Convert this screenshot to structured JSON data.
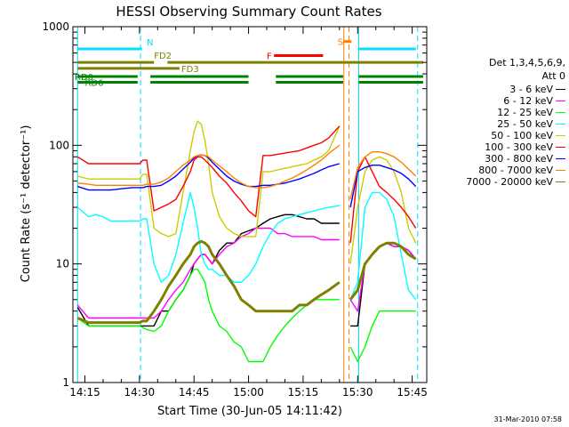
{
  "chart_data": {
    "type": "line",
    "title": "HESSI Observing Summary Count Rates",
    "xlabel": "Start Time (30-Jun-05 14:11:42)",
    "ylabel": "Count Rate (s⁻¹ detector⁻¹)",
    "yscale": "log",
    "ylim": [
      1,
      1000
    ],
    "xlim_minutes": [
      11.7,
      109.0
    ],
    "xticks": [
      {
        "t": 15,
        "label": "14:15"
      },
      {
        "t": 30,
        "label": "14:30"
      },
      {
        "t": 45,
        "label": "14:45"
      },
      {
        "t": 60,
        "label": "15:00"
      },
      {
        "t": 75,
        "label": "15:15"
      },
      {
        "t": 90,
        "label": "15:30"
      },
      {
        "t": 105,
        "label": "15:45"
      }
    ],
    "yticks": [
      {
        "v": 1,
        "label": "1"
      },
      {
        "v": 10,
        "label": "10"
      },
      {
        "v": 100,
        "label": "100"
      },
      {
        "v": 1000,
        "label": "1000"
      }
    ],
    "legend_header": [
      "Det 1,3,4,5,6,9,",
      "Att 0"
    ],
    "series": [
      {
        "name": "3 - 6 keV",
        "color": "#000000",
        "x": [
          13,
          16,
          20,
          25,
          30,
          31,
          32,
          34,
          36,
          38,
          40,
          42,
          44,
          45,
          46,
          47,
          48,
          49,
          50,
          52,
          54,
          56,
          58,
          60,
          62,
          64,
          66,
          68,
          70,
          72,
          74,
          76,
          78,
          80,
          82,
          85,
          86,
          87,
          88,
          90,
          92,
          94,
          96,
          98,
          100,
          102,
          104,
          106
        ],
        "y": [
          4.3,
          3,
          3,
          3,
          3,
          3,
          3,
          3,
          4,
          4,
          5,
          6,
          8,
          10,
          11,
          12,
          12,
          11,
          10,
          13,
          15,
          15,
          18,
          19,
          20,
          22,
          24,
          25,
          26,
          26,
          25,
          24,
          24,
          22,
          22,
          22,
          null,
          null,
          3,
          3,
          10,
          12,
          14,
          15,
          14,
          14,
          13,
          11
        ]
      },
      {
        "name": "6 - 12 keV",
        "color": "#ff00ff",
        "x": [
          13,
          16,
          20,
          25,
          30,
          32,
          34,
          36,
          38,
          40,
          42,
          44,
          45,
          46,
          47,
          48,
          49,
          50,
          52,
          54,
          56,
          58,
          60,
          62,
          64,
          66,
          68,
          70,
          72,
          74,
          76,
          78,
          80,
          82,
          85,
          86,
          87,
          88,
          90,
          92,
          94,
          96,
          98,
          100,
          102,
          104,
          106
        ],
        "y": [
          4.5,
          3.5,
          3.5,
          3.5,
          3.5,
          3.5,
          3.5,
          4,
          5,
          6,
          7,
          9,
          10,
          11,
          12,
          12,
          11,
          10,
          12,
          14,
          15,
          17,
          18,
          20,
          20,
          20,
          18,
          18,
          17,
          17,
          17,
          17,
          16,
          16,
          16,
          null,
          null,
          5,
          4,
          10,
          12,
          14,
          15,
          14,
          14,
          13,
          11
        ]
      },
      {
        "name": "12 - 25 keV",
        "color": "#00ff00",
        "x": [
          13,
          16,
          20,
          25,
          30,
          32,
          34,
          36,
          38,
          40,
          42,
          44,
          45,
          46,
          47,
          48,
          49,
          50,
          52,
          54,
          56,
          58,
          60,
          62,
          64,
          66,
          68,
          70,
          72,
          74,
          76,
          78,
          80,
          82,
          85,
          86,
          87,
          88,
          90,
          92,
          94,
          96,
          98,
          100,
          102,
          104,
          106
        ],
        "y": [
          3.5,
          3,
          3,
          3,
          3,
          2.8,
          2.7,
          3,
          4,
          5,
          6,
          8,
          9,
          9,
          8,
          7,
          5,
          4,
          3,
          2.7,
          2.2,
          2,
          1.5,
          1.5,
          1.5,
          2,
          2.5,
          3,
          3.5,
          4,
          4.5,
          5,
          5,
          5,
          5,
          null,
          null,
          2,
          1.5,
          2,
          3,
          4,
          4,
          4,
          4,
          4,
          4
        ]
      },
      {
        "name": "25 - 50 keV",
        "color": "#00ffff",
        "x": [
          13,
          16,
          18,
          20,
          22,
          25,
          28,
          30,
          31,
          32,
          34,
          36,
          38,
          40,
          42,
          44,
          45,
          46,
          47,
          48,
          49,
          50,
          52,
          54,
          56,
          58,
          60,
          62,
          64,
          66,
          68,
          70,
          72,
          74,
          76,
          78,
          80,
          82,
          85,
          86,
          87,
          88,
          90,
          92,
          94,
          96,
          98,
          100,
          102,
          104,
          106
        ],
        "y": [
          30,
          25,
          26,
          25,
          23,
          23,
          23,
          23,
          24,
          24,
          10,
          7,
          8,
          12,
          22,
          40,
          30,
          20,
          12,
          10,
          9,
          9,
          8,
          8,
          7,
          7,
          8,
          10,
          14,
          18,
          22,
          24,
          25,
          26,
          27,
          28,
          29,
          30,
          31,
          null,
          null,
          5,
          7,
          30,
          40,
          40,
          35,
          25,
          12,
          6,
          5
        ]
      },
      {
        "name": "50 - 100 keV",
        "color": "#cccc00",
        "x": [
          13,
          16,
          18,
          20,
          22,
          25,
          28,
          30,
          31,
          32,
          34,
          36,
          38,
          40,
          42,
          44,
          45,
          46,
          47,
          48,
          49,
          50,
          52,
          54,
          56,
          58,
          60,
          62,
          64,
          66,
          68,
          70,
          72,
          74,
          76,
          78,
          80,
          82,
          85,
          86,
          87,
          88,
          90,
          92,
          94,
          96,
          98,
          100,
          102,
          104,
          106
        ],
        "y": [
          55,
          52,
          52,
          52,
          52,
          52,
          52,
          52,
          57,
          57,
          20,
          18,
          17,
          18,
          40,
          90,
          130,
          160,
          150,
          110,
          70,
          40,
          25,
          20,
          18,
          17,
          17,
          17,
          60,
          60,
          62,
          64,
          66,
          68,
          70,
          75,
          80,
          90,
          145,
          null,
          null,
          10,
          30,
          60,
          75,
          80,
          75,
          60,
          40,
          20,
          15
        ]
      },
      {
        "name": "100 - 300 keV",
        "color": "#ff0000",
        "x": [
          13,
          16,
          18,
          20,
          22,
          25,
          28,
          30,
          31,
          32,
          34,
          36,
          38,
          40,
          42,
          44,
          45,
          46,
          47,
          48,
          49,
          50,
          52,
          54,
          56,
          58,
          60,
          62,
          64,
          66,
          68,
          70,
          72,
          74,
          76,
          78,
          80,
          82,
          85,
          86,
          87,
          88,
          90,
          92,
          94,
          96,
          98,
          100,
          102,
          104,
          106
        ],
        "y": [
          80,
          70,
          70,
          70,
          70,
          70,
          70,
          70,
          75,
          75,
          28,
          30,
          32,
          35,
          45,
          60,
          75,
          80,
          80,
          75,
          70,
          65,
          55,
          48,
          40,
          34,
          28,
          25,
          82,
          82,
          84,
          86,
          88,
          90,
          95,
          100,
          105,
          115,
          145,
          null,
          null,
          15,
          60,
          80,
          60,
          45,
          40,
          35,
          30,
          25,
          20
        ]
      },
      {
        "name": "300 - 800 keV",
        "color": "#0000ff",
        "x": [
          13,
          16,
          18,
          20,
          22,
          25,
          28,
          30,
          31,
          32,
          34,
          36,
          38,
          40,
          42,
          44,
          45,
          46,
          47,
          48,
          49,
          50,
          52,
          54,
          56,
          58,
          60,
          62,
          64,
          66,
          68,
          70,
          72,
          74,
          76,
          78,
          80,
          82,
          85,
          86,
          87,
          88,
          90,
          92,
          94,
          96,
          98,
          100,
          102,
          104,
          106
        ],
        "y": [
          45,
          42,
          42,
          42,
          42,
          43,
          44,
          44,
          44,
          45,
          45,
          46,
          50,
          55,
          63,
          72,
          78,
          82,
          83,
          82,
          78,
          72,
          63,
          55,
          50,
          47,
          45,
          45,
          46,
          46,
          47,
          48,
          50,
          52,
          55,
          58,
          62,
          66,
          70,
          null,
          null,
          30,
          60,
          65,
          68,
          68,
          65,
          62,
          58,
          52,
          45
        ]
      },
      {
        "name": "800 - 7000 keV",
        "color": "#ff8000",
        "x": [
          13,
          16,
          18,
          20,
          22,
          25,
          28,
          30,
          31,
          32,
          34,
          36,
          38,
          40,
          42,
          44,
          45,
          46,
          47,
          48,
          49,
          50,
          52,
          54,
          56,
          58,
          60,
          62,
          64,
          66,
          68,
          70,
          72,
          74,
          76,
          78,
          80,
          82,
          85,
          86,
          87,
          88,
          90,
          92,
          94,
          96,
          98,
          100,
          102,
          104,
          106
        ],
        "y": [
          48,
          47,
          46,
          46,
          46,
          46,
          46,
          46,
          46,
          47,
          47,
          49,
          53,
          60,
          68,
          75,
          80,
          82,
          83,
          82,
          80,
          75,
          67,
          60,
          53,
          48,
          45,
          44,
          44,
          45,
          47,
          50,
          53,
          57,
          62,
          68,
          75,
          85,
          100,
          null,
          null,
          35,
          65,
          80,
          88,
          88,
          85,
          80,
          72,
          63,
          55
        ]
      },
      {
        "name": "7000 - 20000 keV",
        "color": "#808000",
        "x": [
          13,
          16,
          18,
          20,
          22,
          25,
          28,
          30,
          31,
          32,
          34,
          36,
          38,
          40,
          42,
          44,
          45,
          46,
          47,
          48,
          49,
          50,
          52,
          54,
          56,
          58,
          60,
          62,
          64,
          66,
          68,
          70,
          72,
          74,
          76,
          78,
          80,
          82,
          85,
          86,
          87,
          88,
          90,
          92,
          94,
          96,
          98,
          100,
          102,
          104,
          106
        ],
        "y": [
          3.5,
          3.2,
          3.2,
          3.2,
          3.2,
          3.2,
          3.2,
          3.2,
          3.3,
          3.3,
          4,
          5,
          6.5,
          8,
          10,
          12,
          14,
          15,
          15.5,
          15,
          14,
          12,
          10,
          8,
          6.5,
          5,
          4.5,
          4,
          4,
          4,
          4,
          4,
          4,
          4.5,
          4.5,
          5,
          5.5,
          6,
          7,
          null,
          null,
          5,
          6,
          10,
          12,
          14,
          15,
          15,
          14,
          12,
          11
        ]
      }
    ],
    "flags": [
      {
        "label": "N",
        "color": "#00e0ff",
        "segments": [
          [
            13,
            30.7
          ],
          [
            90.3,
            106
          ]
        ],
        "y": 650,
        "label_at": 32,
        "above": true
      },
      {
        "label": "FD2",
        "color": "#808000",
        "segments": [
          [
            13,
            34
          ],
          [
            37.7,
            108
          ]
        ],
        "y": 500,
        "label_at": 34,
        "above": true
      },
      {
        "label": "FD3",
        "color": "#808000",
        "segments": [
          [
            13,
            41
          ]
        ],
        "y": 445,
        "label_at": 41.5,
        "above": false
      },
      {
        "label": "RD0",
        "color": "#008000",
        "segments": [
          [
            13,
            29.5
          ],
          [
            33,
            60
          ],
          [
            67.5,
            86
          ],
          [
            90.3,
            108
          ]
        ],
        "y": 380,
        "label_at": 12.2,
        "above": false
      },
      {
        "label": "RD6",
        "color": "#008000",
        "segments": [
          [
            13,
            29.5
          ],
          [
            33,
            60
          ],
          [
            67.5,
            86
          ],
          [
            90.3,
            108
          ]
        ],
        "y": 340,
        "label_at": 15,
        "above": false
      },
      {
        "label": "F",
        "color": "#ff0000",
        "segments": [
          [
            67,
            80.5
          ]
        ],
        "y": 570,
        "label_at": 65,
        "above": false
      },
      {
        "label": "S",
        "color": "#ff8000",
        "segments": [
          [
            86,
            88.3
          ]
        ],
        "y": 750,
        "label_at": 84.5,
        "above": false
      }
    ],
    "vlines": [
      {
        "t": 13,
        "color": "#00e0ff",
        "dash": false
      },
      {
        "t": 30.3,
        "color": "#00e0ff",
        "dash": true
      },
      {
        "t": 86.2,
        "color": "#ff8000",
        "dash": false
      },
      {
        "t": 87.6,
        "color": "#ff8000",
        "dash": true
      },
      {
        "t": 90.3,
        "color": "#00e0ff",
        "dash": false
      },
      {
        "t": 106.5,
        "color": "#00e0ff",
        "dash": true
      }
    ],
    "grid": false,
    "legend_position": "right"
  },
  "footer_stamp": "31-Mar-2010 07:58"
}
